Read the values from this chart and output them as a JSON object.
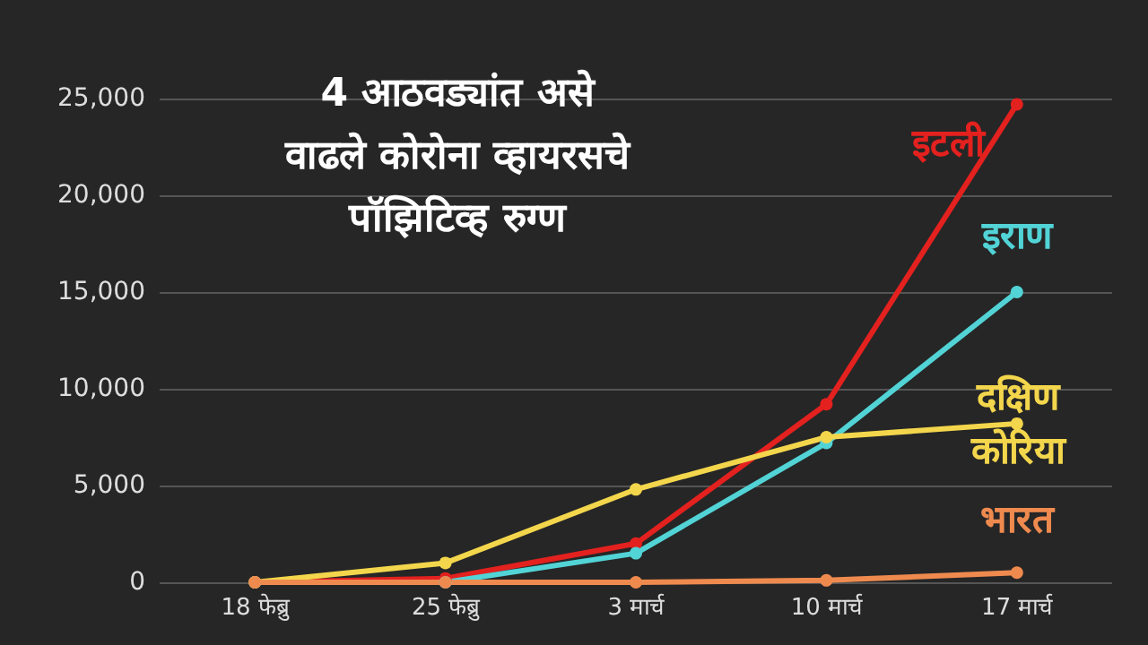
{
  "chart_data": {
    "type": "line",
    "title": "4 आठवड्यांत असे\nवाढले कोरोना व्हायरसचे\nपॉझिटिव्ह रुग्ण",
    "categories": [
      "18 फेब्रु",
      "25 फेब्रु",
      "3 मार्च",
      "10 मार्च",
      "17 मार्च"
    ],
    "series": [
      {
        "name": "इटली",
        "color": "#e3211f",
        "values": [
          0,
          200,
          2000,
          9200,
          24700
        ]
      },
      {
        "name": "इराण",
        "color": "#52d3d6",
        "values": [
          0,
          0,
          1500,
          7200,
          15000
        ]
      },
      {
        "name": "दक्षिण कोरिया",
        "color": "#f3d64c",
        "values": [
          0,
          1000,
          4800,
          7500,
          8200
        ]
      },
      {
        "name": "भारत",
        "color": "#ef8a4f",
        "values": [
          0,
          0,
          0,
          100,
          500
        ]
      }
    ],
    "ylim": [
      0,
      25000
    ],
    "yticks": [
      0,
      {
        "value": 5000,
        "label": "5,000"
      },
      {
        "value": 10000,
        "label": "10,000"
      },
      {
        "value": 15000,
        "label": "15,000"
      },
      {
        "value": 20000,
        "label": "20,000"
      },
      {
        "value": 25000,
        "label": "25,000"
      }
    ],
    "grid": "y",
    "legend": false,
    "marker": "circle",
    "line_style": "solid"
  }
}
